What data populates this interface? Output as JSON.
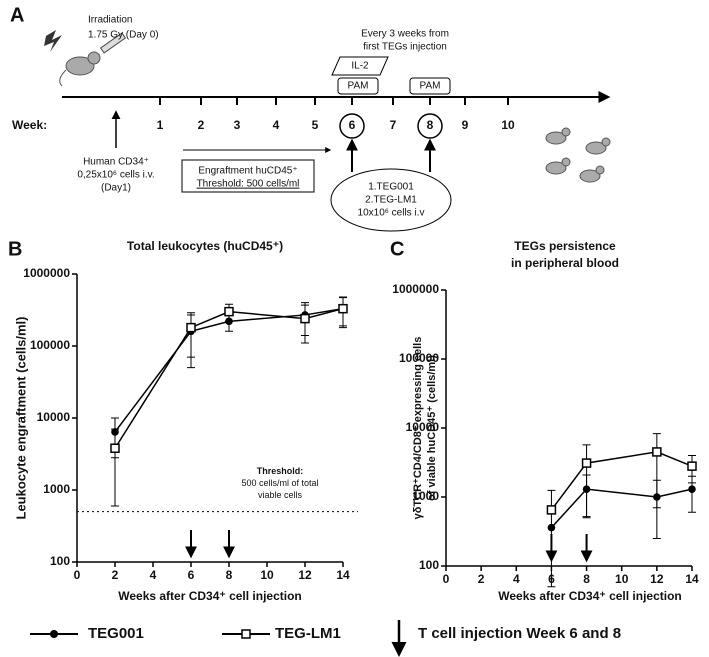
{
  "panel_a": {
    "letter": "A",
    "irradiation": [
      "Irradiation",
      "1.75 Gy (Day 0)"
    ],
    "repeat_note": [
      "Every 3 weeks from",
      "first TEGs injection"
    ],
    "il2": "IL-2",
    "pam": [
      "PAM",
      "PAM"
    ],
    "week_label": "Week:",
    "weeks": [
      "1",
      "2",
      "3",
      "4",
      "5",
      "6",
      "7",
      "8",
      "9",
      "10"
    ],
    "cd34": [
      "Human CD34⁺",
      "0,25x10⁶ cells i.v.",
      "(Day1)"
    ],
    "engraftment": [
      "Engraftment huCD45⁺",
      "Threshold: 500 cells/ml"
    ],
    "injection": [
      "1.TEG001",
      "2.TEG-LM1",
      "10x10⁶ cells i.v"
    ]
  },
  "chart_data": [
    {
      "type": "line",
      "panel": "B",
      "title": "Total leukocytes (huCD45⁺)",
      "xlabel": "Weeks after CD34⁺ cell injection",
      "ylabel": [
        "Leukocyte engraftment (cells/ml)"
      ],
      "log_y": true,
      "xlim": [
        0,
        14
      ],
      "xticks": [
        0,
        2,
        4,
        6,
        8,
        10,
        12,
        14
      ],
      "ylim": [
        100,
        1000000
      ],
      "yticks": [
        100,
        1000,
        10000,
        100000,
        1000000
      ],
      "x": [
        2,
        6,
        8,
        12,
        14
      ],
      "series": [
        {
          "name": "TEG001",
          "color": "#000000",
          "marker": "circle",
          "values": [
            6400,
            160000,
            220000,
            270000,
            330000
          ],
          "errors": [
            3600,
            110000,
            60000,
            130000,
            140000
          ]
        },
        {
          "name": "TEG-LM1",
          "color": "#000000",
          "marker": "square",
          "values": [
            3800,
            180000,
            300000,
            240000,
            330000
          ],
          "errors": [
            3200,
            110000,
            80000,
            130000,
            150000
          ]
        }
      ],
      "threshold": 500,
      "threshold_label": [
        "Threshold:",
        "500 cells/ml of total",
        "viable cells"
      ],
      "injection_weeks": [
        6,
        8
      ]
    },
    {
      "type": "line",
      "panel": "C",
      "title": "TEGs persistence",
      "subtitle": "in peripheral blood",
      "xlabel": "Weeks after CD34⁺ cell injection",
      "ylabel": [
        "γδTCR⁺CD4/CD8⁺ expressing cells",
        "of viable huCD45⁺ (cells/ml)"
      ],
      "log_y": true,
      "xlim": [
        0,
        14
      ],
      "xticks": [
        0,
        2,
        4,
        6,
        8,
        10,
        12,
        14
      ],
      "ylim": [
        100,
        1000000
      ],
      "yticks": [
        100,
        1000,
        10000,
        100000,
        1000000
      ],
      "x": [
        6,
        8,
        12,
        14
      ],
      "series": [
        {
          "name": "TEG001",
          "color": "#000000",
          "marker": "circle",
          "values": [
            360,
            1300,
            1000,
            1300
          ],
          "errors": [
            0,
            780,
            750,
            700
          ]
        },
        {
          "name": "TEG-LM1",
          "color": "#000000",
          "marker": "square",
          "values": [
            650,
            3100,
            4500,
            2800
          ],
          "errors": [
            600,
            2600,
            3800,
            1200
          ]
        }
      ],
      "injection_weeks": [
        6,
        8
      ]
    }
  ],
  "legend_note": "T cell injection Week 6 and 8"
}
